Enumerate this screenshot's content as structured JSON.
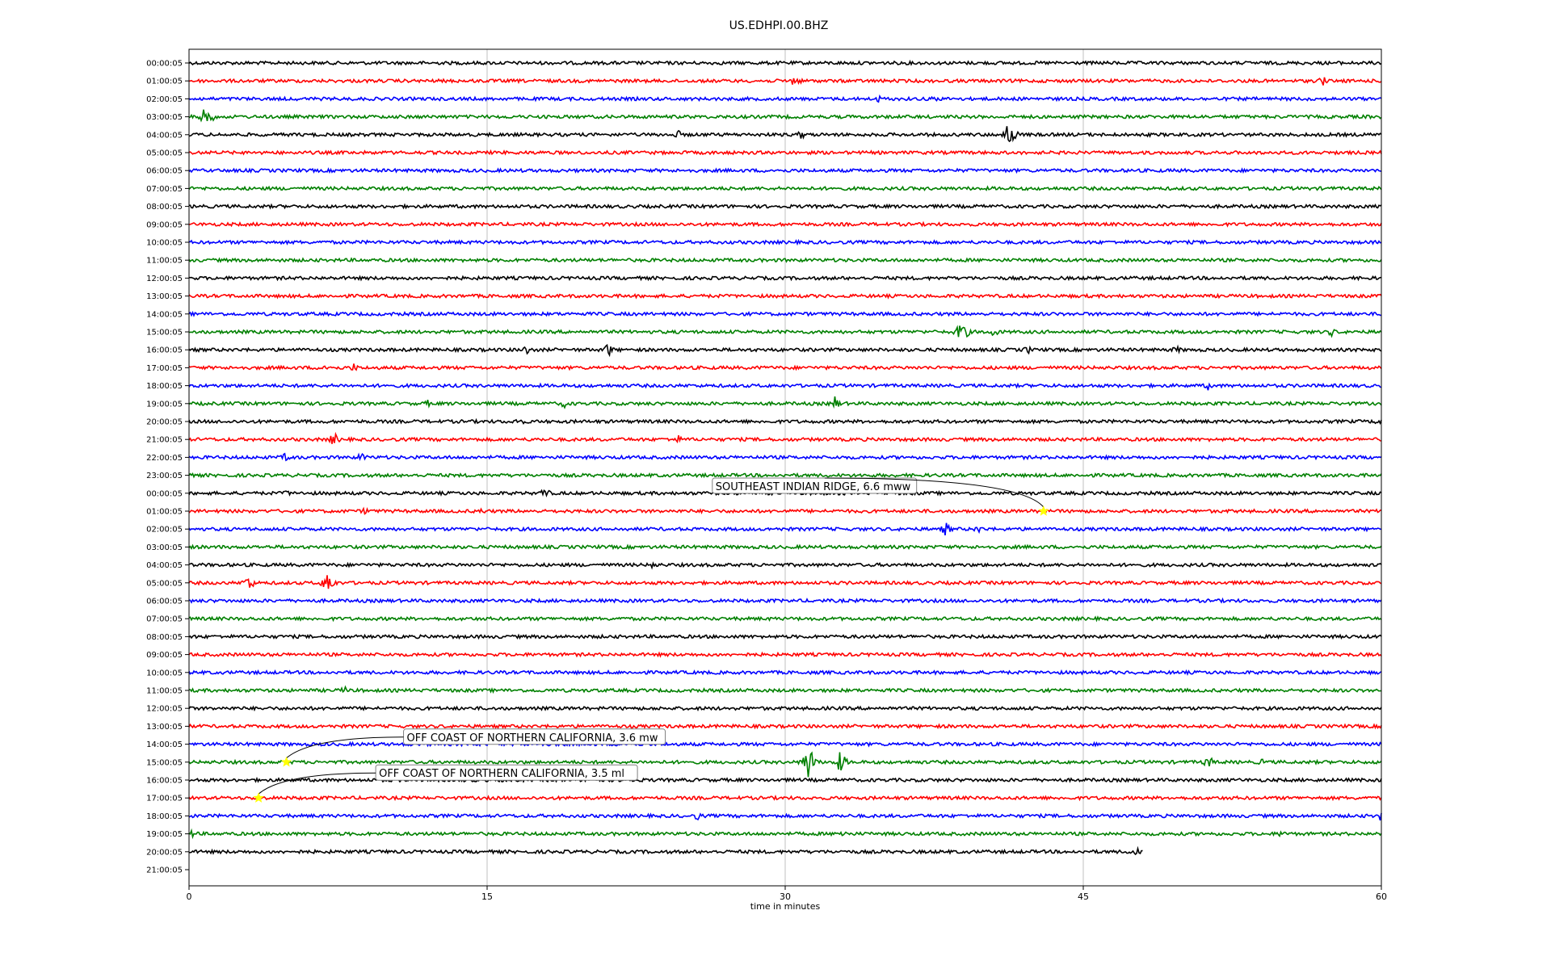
{
  "chart_data": {
    "type": "line",
    "title": "US.EDHPI.00.BHZ",
    "xlabel": "time in minutes",
    "xlim": [
      0,
      60
    ],
    "x_ticks": [
      0,
      15,
      30,
      45,
      60
    ],
    "grid": "vertical lines at x ticks",
    "row_labels": [
      "00:00:05",
      "01:00:05",
      "02:00:05",
      "03:00:05",
      "04:00:05",
      "05:00:05",
      "06:00:05",
      "07:00:05",
      "08:00:05",
      "09:00:05",
      "10:00:05",
      "11:00:05",
      "12:00:05",
      "13:00:05",
      "14:00:05",
      "15:00:05",
      "16:00:05",
      "17:00:05",
      "18:00:05",
      "19:00:05",
      "20:00:05",
      "21:00:05",
      "22:00:05",
      "23:00:05",
      "00:00:05",
      "01:00:05",
      "02:00:05",
      "03:00:05",
      "04:00:05",
      "05:00:05",
      "06:00:05",
      "07:00:05",
      "08:00:05",
      "09:00:05",
      "10:00:05",
      "11:00:05",
      "12:00:05",
      "13:00:05",
      "14:00:05",
      "15:00:05",
      "16:00:05",
      "17:00:05",
      "18:00:05",
      "19:00:05",
      "20:00:05",
      "21:00:05"
    ],
    "trace_colors": [
      "#000000",
      "#ff0000",
      "#0000ff",
      "#008000"
    ],
    "trace_count": 45,
    "last_trace_end_minute": 48,
    "spikes": [
      {
        "row": 1,
        "minute": 30.5,
        "amp": 0.8
      },
      {
        "row": 1,
        "minute": 57,
        "amp": 0.7
      },
      {
        "row": 2,
        "minute": 34.7,
        "amp": 0.4
      },
      {
        "row": 2,
        "minute": 37.5,
        "amp": 0.4
      },
      {
        "row": 3,
        "minute": 0.9,
        "amp": 1.6
      },
      {
        "row": 4,
        "minute": 30.8,
        "amp": 0.5
      },
      {
        "row": 4,
        "minute": 41.3,
        "amp": 1.8
      },
      {
        "row": 4,
        "minute": 24.6,
        "amp": 0.5
      },
      {
        "row": 15,
        "minute": 38.9,
        "amp": 1.5
      },
      {
        "row": 15,
        "minute": 40.5,
        "amp": 0.6
      },
      {
        "row": 15,
        "minute": 57.5,
        "amp": 0.5
      },
      {
        "row": 16,
        "minute": 21.1,
        "amp": 0.8
      },
      {
        "row": 16,
        "minute": 17.0,
        "amp": 0.6
      },
      {
        "row": 16,
        "minute": 42.2,
        "amp": 0.5
      },
      {
        "row": 16,
        "minute": 49.7,
        "amp": 0.5
      },
      {
        "row": 17,
        "minute": 6.8,
        "amp": 0.5
      },
      {
        "row": 17,
        "minute": 8.3,
        "amp": 0.5
      },
      {
        "row": 18,
        "minute": 51.3,
        "amp": 0.5
      },
      {
        "row": 19,
        "minute": 32.5,
        "amp": 0.8
      },
      {
        "row": 19,
        "minute": 18.9,
        "amp": 0.5
      },
      {
        "row": 19,
        "minute": 12.0,
        "amp": 0.4
      },
      {
        "row": 20,
        "minute": 16.6,
        "amp": 0.6
      },
      {
        "row": 20,
        "minute": 59.9,
        "amp": 0.6
      },
      {
        "row": 21,
        "minute": 7.3,
        "amp": 0.8
      },
      {
        "row": 21,
        "minute": 24.6,
        "amp": 0.5
      },
      {
        "row": 22,
        "minute": 4.9,
        "amp": 0.6
      },
      {
        "row": 22,
        "minute": 8.7,
        "amp": 0.6
      },
      {
        "row": 24,
        "minute": 17.9,
        "amp": 0.7
      },
      {
        "row": 24,
        "minute": 4.9,
        "amp": 0.4
      },
      {
        "row": 25,
        "minute": 8.9,
        "amp": 0.5
      },
      {
        "row": 25,
        "minute": 14.7,
        "amp": 0.4
      },
      {
        "row": 26,
        "minute": 38.1,
        "amp": 0.8
      },
      {
        "row": 26,
        "minute": 39.7,
        "amp": 0.5
      },
      {
        "row": 28,
        "minute": 23.3,
        "amp": 0.5
      },
      {
        "row": 29,
        "minute": 3.0,
        "amp": 1.0
      },
      {
        "row": 29,
        "minute": 7.0,
        "amp": 1.5
      },
      {
        "row": 35,
        "minute": 7.8,
        "amp": 0.5
      },
      {
        "row": 39,
        "minute": 31.2,
        "amp": 2.2
      },
      {
        "row": 39,
        "minute": 32.8,
        "amp": 1.3
      },
      {
        "row": 39,
        "minute": 51.3,
        "amp": 0.8
      },
      {
        "row": 39,
        "minute": 54.0,
        "amp": 0.4
      },
      {
        "row": 42,
        "minute": 25.6,
        "amp": 0.5
      },
      {
        "row": 42,
        "minute": 59.9,
        "amp": 0.6
      },
      {
        "row": 43,
        "minute": 0.2,
        "amp": 0.5
      },
      {
        "row": 43,
        "minute": 32.9,
        "amp": 0.5
      },
      {
        "row": 43,
        "minute": 55.0,
        "amp": 0.5
      },
      {
        "row": 44,
        "minute": 47.6,
        "amp": 0.7
      }
    ],
    "events": [
      {
        "label": "SOUTHEAST INDIAN RIDGE, 6.6 mww",
        "row": 25,
        "minute": 43.0
      },
      {
        "label": "OFF COAST OF NORTHERN CALIFORNIA, 3.6 mw",
        "row": 39,
        "minute": 4.9
      },
      {
        "label": "OFF COAST OF NORTHERN CALIFORNIA, 3.5 ml",
        "row": 41,
        "minute": 3.5
      }
    ],
    "marker_color": "#ffff00"
  }
}
